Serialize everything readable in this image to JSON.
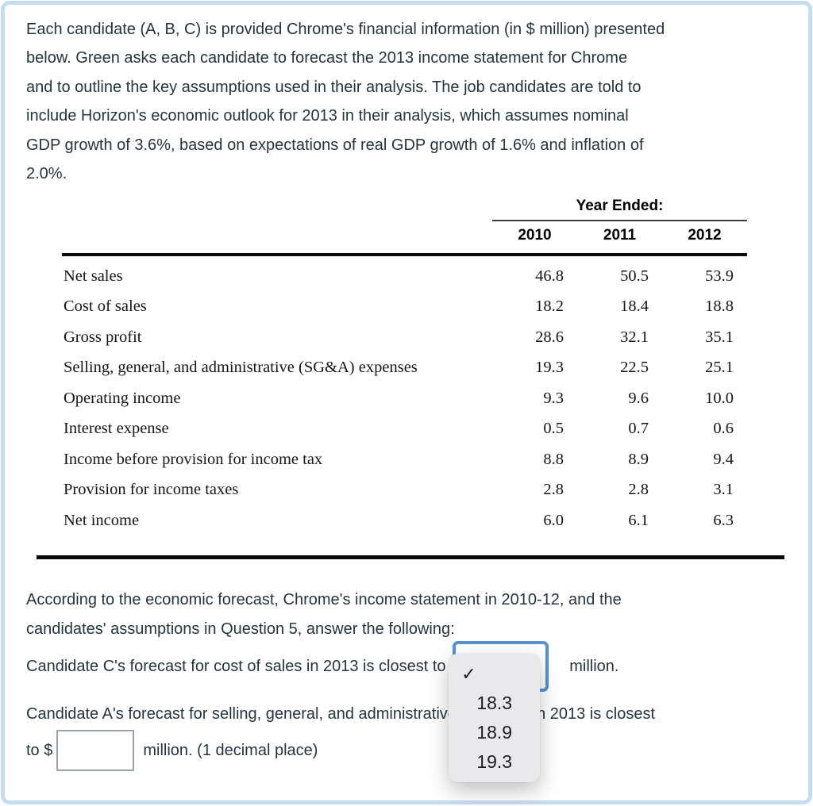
{
  "colors": {
    "accent_blue": "#5591d3",
    "card_border": "#c6dcf0",
    "menu_bg": "#e9e9eb",
    "text": "#25343e",
    "table_rule": "#0a0a0a"
  },
  "intro_paragraph": {
    "lines": [
      "Each candidate (A, B, C) is provided Chrome's financial information (in $ million) presented",
      "below. Green asks each candidate to forecast the 2013 income statement for Chrome",
      "and to outline the key assumptions used in their analysis. The job candidates are told to",
      "include Horizon's economic outlook for 2013 in their analysis, which assumes nominal",
      "GDP growth of 3.6%, based on expectations of real GDP growth of 1.6% and inflation of",
      "2.0%."
    ]
  },
  "table": {
    "header": "Year Ended:",
    "years": [
      "2010",
      "2011",
      "2012"
    ],
    "rows": [
      {
        "label": "Net sales",
        "values": [
          "46.8",
          "50.5",
          "53.9"
        ]
      },
      {
        "label": "Cost of sales",
        "values": [
          "18.2",
          "18.4",
          "18.8"
        ]
      },
      {
        "label": "Gross profit",
        "values": [
          "28.6",
          "32.1",
          "35.1"
        ]
      },
      {
        "label": "Selling, general, and administrative (SG&A) expenses",
        "values": [
          "19.3",
          "22.5",
          "25.1"
        ]
      },
      {
        "label": "Operating income",
        "values": [
          "9.3",
          "9.6",
          "10.0"
        ]
      },
      {
        "label": "Interest expense",
        "values": [
          "0.5",
          "0.7",
          "0.6"
        ]
      },
      {
        "label": "Income before provision for income tax",
        "values": [
          "8.8",
          "8.9",
          "9.4"
        ]
      },
      {
        "label": "Provision for income taxes",
        "values": [
          "2.8",
          "2.8",
          "3.1"
        ]
      },
      {
        "label": "Net income",
        "values": [
          "6.0",
          "6.1",
          "6.3"
        ]
      }
    ]
  },
  "question_intro": {
    "lines": [
      "According to the economic forecast, Chrome's income statement in 2010-12, and the",
      "candidates' assumptions in Question 5, answer the following:"
    ]
  },
  "question1": {
    "text_before": "Candidate C's forecast for cost of sales in 2013 is closest to $",
    "text_after": "million.",
    "dropdown": {
      "selected_value": "",
      "checkmark": "✓",
      "options": [
        "18.3",
        "18.9",
        "19.3"
      ]
    }
  },
  "question2": {
    "line1": "Candidate A's forecast for selling, general, and administrative expenses in 2013 is closest",
    "line2_before": "to $",
    "input_value": "",
    "line2_after": "million. (1 decimal place)"
  }
}
